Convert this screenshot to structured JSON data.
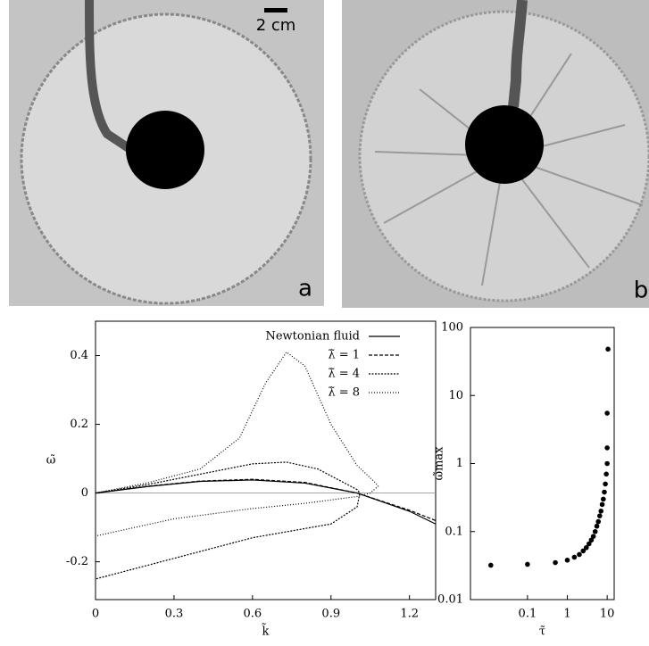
{
  "panels": {
    "a": {
      "label": "a",
      "scale_bar": "2 cm"
    },
    "b": {
      "label": "b"
    }
  },
  "chart_data": [
    {
      "type": "line",
      "x_label": "k̃",
      "y_label": "ω̃",
      "xlim": [
        0,
        1.3
      ],
      "ylim": [
        -0.31,
        0.5
      ],
      "xticks": [
        0,
        0.3,
        0.6,
        0.9,
        1.2
      ],
      "yticks": [
        -0.2,
        0,
        0.2,
        0.4
      ],
      "legend": "upper right",
      "series": [
        {
          "name": "Newtonian fluid",
          "color": "#000000",
          "line_style": "solid",
          "x": [
            0,
            0.2,
            0.4,
            0.6,
            0.8,
            1.0,
            1.2,
            1.3
          ],
          "values": [
            0,
            0.019,
            0.034,
            0.038,
            0.029,
            0,
            -0.053,
            -0.09
          ]
        },
        {
          "name": "λ̃ = 1",
          "color": "#000000",
          "line_style": "dashed",
          "x": [
            0,
            0.2,
            0.4,
            0.6,
            0.8,
            1.0,
            1.2,
            1.3
          ],
          "values": [
            0,
            0.02,
            0.035,
            0.04,
            0.031,
            0,
            -0.05,
            -0.08
          ]
        },
        {
          "name": "λ̃ = 4",
          "color": "#000000",
          "line_style": "densely dotted",
          "x": [
            0,
            0.2,
            0.4,
            0.6,
            0.73,
            0.85,
            0.95,
            1.0,
            1.01,
            1.0,
            0.9,
            0.6,
            0.3,
            0
          ],
          "values": [
            0,
            0.025,
            0.055,
            0.085,
            0.09,
            0.07,
            0.03,
            0.01,
            0,
            -0.04,
            -0.09,
            -0.13,
            -0.19,
            -0.25
          ]
        },
        {
          "name": "λ̃ = 8",
          "color": "#000000",
          "line_style": "dotted",
          "x": [
            0,
            0.2,
            0.4,
            0.55,
            0.65,
            0.73,
            0.8,
            0.9,
            1.0,
            1.07,
            1.08,
            1.05,
            1.0,
            0.8,
            0.6,
            0.3,
            0
          ],
          "values": [
            0,
            0.03,
            0.07,
            0.16,
            0.32,
            0.41,
            0.37,
            0.2,
            0.08,
            0.03,
            0.02,
            0,
            -0.01,
            -0.03,
            -0.045,
            -0.075,
            -0.125
          ]
        }
      ]
    },
    {
      "type": "scatter",
      "x_label": "τ̃",
      "y_label": "ω̃max",
      "log_x": true,
      "log_y": true,
      "xlim": [
        0.0037,
        15
      ],
      "ylim": [
        0.01,
        100
      ],
      "xticks": [
        0.1,
        1,
        10
      ],
      "yticks": [
        0.01,
        0.1,
        1,
        10,
        100
      ],
      "color": "#000000",
      "x": [
        0.012,
        0.1,
        0.5,
        1,
        1.5,
        2,
        2.5,
        3,
        3.5,
        4,
        4.5,
        5,
        5.5,
        6,
        6.5,
        7,
        7.5,
        8,
        8.5,
        9,
        9.5,
        10,
        10,
        10,
        10.5
      ],
      "values": [
        0.032,
        0.033,
        0.035,
        0.038,
        0.042,
        0.046,
        0.052,
        0.058,
        0.066,
        0.075,
        0.085,
        0.1,
        0.12,
        0.14,
        0.17,
        0.2,
        0.25,
        0.3,
        0.38,
        0.5,
        0.7,
        1.0,
        1.7,
        5.5,
        48
      ]
    }
  ]
}
